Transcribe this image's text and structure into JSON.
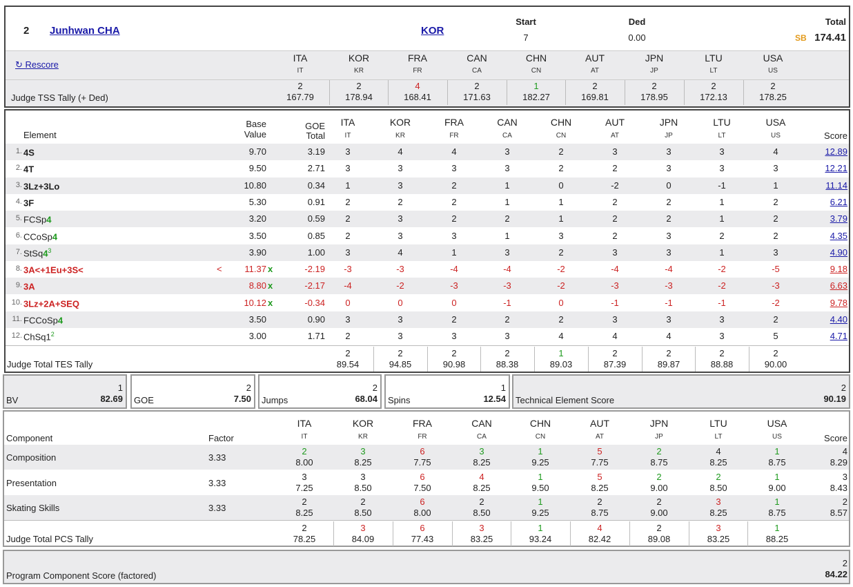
{
  "header": {
    "rank": "2",
    "name": "Junhwan CHA",
    "nation": "KOR",
    "start_label": "Start",
    "start_value": "7",
    "ded_label": "Ded",
    "ded_value": "0.00",
    "total_label": "Total",
    "sb_badge": "SB",
    "total_value": "174.41",
    "rescore_label": "↻ Rescore",
    "tss_label": "Judge TSS Tally (+ Ded)"
  },
  "judges": [
    {
      "code": "ITA",
      "sub": "IT"
    },
    {
      "code": "KOR",
      "sub": "KR"
    },
    {
      "code": "FRA",
      "sub": "FR"
    },
    {
      "code": "CAN",
      "sub": "CA"
    },
    {
      "code": "CHN",
      "sub": "CN"
    },
    {
      "code": "AUT",
      "sub": "AT"
    },
    {
      "code": "JPN",
      "sub": "JP"
    },
    {
      "code": "LTU",
      "sub": "LT"
    },
    {
      "code": "USA",
      "sub": "US"
    }
  ],
  "tss_tally": [
    {
      "rank": "2",
      "val": "167.79",
      "color": "dark"
    },
    {
      "rank": "2",
      "val": "178.94",
      "color": "dark"
    },
    {
      "rank": "4",
      "val": "168.41",
      "color": "red"
    },
    {
      "rank": "2",
      "val": "171.63",
      "color": "dark"
    },
    {
      "rank": "1",
      "val": "182.27",
      "color": "green"
    },
    {
      "rank": "2",
      "val": "169.81",
      "color": "dark"
    },
    {
      "rank": "2",
      "val": "178.95",
      "color": "dark"
    },
    {
      "rank": "2",
      "val": "172.13",
      "color": "dark"
    },
    {
      "rank": "2",
      "val": "178.25",
      "color": "dark"
    }
  ],
  "elements_header": {
    "element": "Element",
    "base1": "Base",
    "base2": "Value",
    "goe1": "GOE",
    "goe2": "Total",
    "score": "Score"
  },
  "elements": [
    {
      "no": "1.",
      "name": "4S",
      "level": "",
      "sup": "",
      "info": "",
      "bv": "9.70",
      "x": "",
      "goe": "3.19",
      "marks": [
        "3",
        "4",
        "4",
        "3",
        "2",
        "3",
        "3",
        "3",
        "4"
      ],
      "score": "12.89",
      "red": false
    },
    {
      "no": "2.",
      "name": "4T",
      "level": "",
      "sup": "",
      "info": "",
      "bv": "9.50",
      "x": "",
      "goe": "2.71",
      "marks": [
        "3",
        "3",
        "3",
        "3",
        "2",
        "2",
        "3",
        "3",
        "3"
      ],
      "score": "12.21",
      "red": false
    },
    {
      "no": "3.",
      "name": "3Lz+3Lo",
      "level": "",
      "sup": "",
      "info": "",
      "bv": "10.80",
      "x": "",
      "goe": "0.34",
      "marks": [
        "1",
        "3",
        "2",
        "1",
        "0",
        "-2",
        "0",
        "-1",
        "1"
      ],
      "score": "11.14",
      "red": false
    },
    {
      "no": "4.",
      "name": "3F",
      "level": "",
      "sup": "",
      "info": "",
      "bv": "5.30",
      "x": "",
      "goe": "0.91",
      "marks": [
        "2",
        "2",
        "2",
        "1",
        "1",
        "2",
        "2",
        "1",
        "2"
      ],
      "score": "6.21",
      "red": false
    },
    {
      "no": "5.",
      "name": "FCSp",
      "level": "4",
      "sup": "",
      "info": "",
      "bv": "3.20",
      "x": "",
      "goe": "0.59",
      "marks": [
        "2",
        "3",
        "2",
        "2",
        "1",
        "2",
        "2",
        "1",
        "2"
      ],
      "score": "3.79",
      "red": false
    },
    {
      "no": "6.",
      "name": "CCoSp",
      "level": "4",
      "sup": "",
      "info": "",
      "bv": "3.50",
      "x": "",
      "goe": "0.85",
      "marks": [
        "2",
        "3",
        "3",
        "1",
        "3",
        "2",
        "3",
        "2",
        "2"
      ],
      "score": "4.35",
      "red": false
    },
    {
      "no": "7.",
      "name": "StSq",
      "level": "4",
      "sup": "3",
      "info": "",
      "bv": "3.90",
      "x": "",
      "goe": "1.00",
      "marks": [
        "3",
        "4",
        "1",
        "3",
        "2",
        "3",
        "3",
        "1",
        "3"
      ],
      "score": "4.90",
      "red": false
    },
    {
      "no": "8.",
      "name": "3A<+1Eu+3S<",
      "level": "",
      "sup": "",
      "info": "<",
      "bv": "11.37",
      "x": "x",
      "goe": "-2.19",
      "marks": [
        "-3",
        "-3",
        "-4",
        "-4",
        "-2",
        "-4",
        "-4",
        "-2",
        "-5"
      ],
      "score": "9.18",
      "red": true
    },
    {
      "no": "9.",
      "name": "3A",
      "level": "",
      "sup": "",
      "info": "",
      "bv": "8.80",
      "x": "x",
      "goe": "-2.17",
      "marks": [
        "-4",
        "-2",
        "-3",
        "-3",
        "-2",
        "-3",
        "-3",
        "-2",
        "-3"
      ],
      "score": "6.63",
      "red": true
    },
    {
      "no": "10.",
      "name": "3Lz+2A+SEQ",
      "level": "",
      "sup": "",
      "info": "",
      "bv": "10.12",
      "x": "x",
      "goe": "-0.34",
      "marks": [
        "0",
        "0",
        "0",
        "-1",
        "0",
        "-1",
        "-1",
        "-1",
        "-2"
      ],
      "score": "9.78",
      "red": true
    },
    {
      "no": "11.",
      "name": "FCCoSp",
      "level": "4",
      "sup": "",
      "info": "",
      "bv": "3.50",
      "x": "",
      "goe": "0.90",
      "marks": [
        "3",
        "3",
        "2",
        "2",
        "2",
        "3",
        "3",
        "3",
        "2"
      ],
      "score": "4.40",
      "red": false
    },
    {
      "no": "12.",
      "name": "ChSq1",
      "level": "",
      "sup": "2",
      "info": "",
      "bv": "3.00",
      "x": "",
      "goe": "1.71",
      "marks": [
        "2",
        "3",
        "3",
        "3",
        "4",
        "4",
        "4",
        "3",
        "5"
      ],
      "score": "4.71",
      "red": false
    }
  ],
  "tes_tally_label": "Judge Total TES Tally",
  "tes_tally": [
    {
      "rank": "2",
      "val": "89.54",
      "color": "dark"
    },
    {
      "rank": "2",
      "val": "94.85",
      "color": "dark"
    },
    {
      "rank": "2",
      "val": "90.98",
      "color": "dark"
    },
    {
      "rank": "2",
      "val": "88.38",
      "color": "dark"
    },
    {
      "rank": "1",
      "val": "89.03",
      "color": "green"
    },
    {
      "rank": "2",
      "val": "87.39",
      "color": "dark"
    },
    {
      "rank": "2",
      "val": "89.87",
      "color": "dark"
    },
    {
      "rank": "2",
      "val": "88.88",
      "color": "dark"
    },
    {
      "rank": "2",
      "val": "90.00",
      "color": "dark"
    }
  ],
  "summary": [
    {
      "label": "BV",
      "rank": "1",
      "val": "82.69"
    },
    {
      "label": "GOE",
      "rank": "2",
      "val": "7.50"
    },
    {
      "label": "Jumps",
      "rank": "2",
      "val": "68.04"
    },
    {
      "label": "Spins",
      "rank": "1",
      "val": "12.54"
    },
    {
      "label": "Technical Element Score",
      "rank": "2",
      "val": "90.19"
    }
  ],
  "components_header": {
    "component": "Component",
    "factor": "Factor",
    "score": "Score"
  },
  "components": [
    {
      "name": "Composition",
      "factor": "3.33",
      "marks": [
        {
          "r": "2",
          "v": "8.00",
          "c": "green"
        },
        {
          "r": "3",
          "v": "8.25",
          "c": "green"
        },
        {
          "r": "6",
          "v": "7.75",
          "c": "red"
        },
        {
          "r": "3",
          "v": "8.25",
          "c": "green"
        },
        {
          "r": "1",
          "v": "9.25",
          "c": "green"
        },
        {
          "r": "5",
          "v": "7.75",
          "c": "red"
        },
        {
          "r": "2",
          "v": "8.75",
          "c": "green"
        },
        {
          "r": "4",
          "v": "8.25",
          "c": "dark"
        },
        {
          "r": "1",
          "v": "8.75",
          "c": "green"
        }
      ],
      "rank": "4",
      "score": "8.29"
    },
    {
      "name": "Presentation",
      "factor": "3.33",
      "marks": [
        {
          "r": "3",
          "v": "7.25",
          "c": "dark"
        },
        {
          "r": "3",
          "v": "8.50",
          "c": "dark"
        },
        {
          "r": "6",
          "v": "7.50",
          "c": "red"
        },
        {
          "r": "4",
          "v": "8.25",
          "c": "red"
        },
        {
          "r": "1",
          "v": "9.50",
          "c": "green"
        },
        {
          "r": "5",
          "v": "8.25",
          "c": "red"
        },
        {
          "r": "2",
          "v": "9.00",
          "c": "green"
        },
        {
          "r": "2",
          "v": "8.50",
          "c": "green"
        },
        {
          "r": "1",
          "v": "9.00",
          "c": "green"
        }
      ],
      "rank": "3",
      "score": "8.43"
    },
    {
      "name": "Skating Skills",
      "factor": "3.33",
      "marks": [
        {
          "r": "2",
          "v": "8.25",
          "c": "dark"
        },
        {
          "r": "2",
          "v": "8.50",
          "c": "dark"
        },
        {
          "r": "6",
          "v": "8.00",
          "c": "red"
        },
        {
          "r": "2",
          "v": "8.50",
          "c": "dark"
        },
        {
          "r": "1",
          "v": "9.25",
          "c": "green"
        },
        {
          "r": "2",
          "v": "8.75",
          "c": "dark"
        },
        {
          "r": "2",
          "v": "9.00",
          "c": "dark"
        },
        {
          "r": "3",
          "v": "8.25",
          "c": "red"
        },
        {
          "r": "1",
          "v": "8.75",
          "c": "green"
        }
      ],
      "rank": "2",
      "score": "8.57"
    }
  ],
  "pcs_tally_label": "Judge Total PCS Tally",
  "pcs_tally": [
    {
      "rank": "2",
      "val": "78.25",
      "color": "dark"
    },
    {
      "rank": "3",
      "val": "84.09",
      "color": "red"
    },
    {
      "rank": "6",
      "val": "77.43",
      "color": "red"
    },
    {
      "rank": "3",
      "val": "83.25",
      "color": "red"
    },
    {
      "rank": "1",
      "val": "93.24",
      "color": "green"
    },
    {
      "rank": "4",
      "val": "82.42",
      "color": "red"
    },
    {
      "rank": "2",
      "val": "89.08",
      "color": "dark"
    },
    {
      "rank": "3",
      "val": "83.25",
      "color": "red"
    },
    {
      "rank": "1",
      "val": "88.25",
      "color": "green"
    }
  ],
  "pcs_final": {
    "label": "Program Component Score (factored)",
    "rank": "2",
    "val": "84.22"
  }
}
